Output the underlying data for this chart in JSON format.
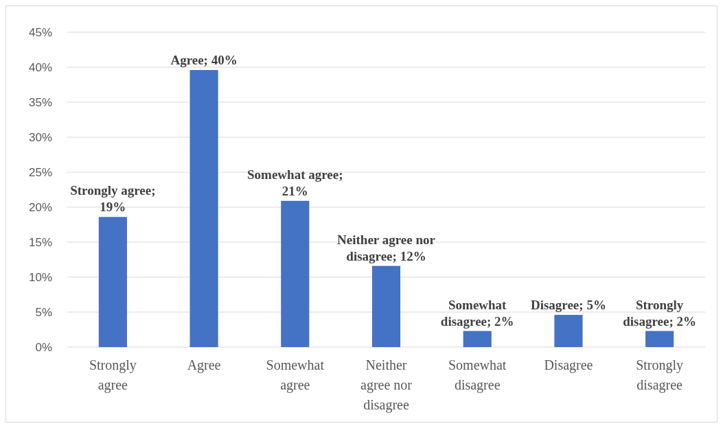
{
  "chart_data": {
    "type": "bar",
    "categories": [
      "Strongly agree",
      "Agree",
      "Somewhat agree",
      "Neither agree nor disagree",
      "Somewhat disagree",
      "Disagree",
      "Strongly disagree"
    ],
    "values": [
      18.6,
      39.6,
      20.9,
      11.6,
      2.3,
      4.6,
      2.3
    ],
    "color": "#4472c4",
    "value_labels": [
      "Strongly agree; 19%",
      "Agree; 40%",
      "Somewhat agree; 21%",
      "Neither agree nor disagree; 12%",
      "Somewhat disagree; 2%",
      "Disagree; 5%",
      "Strongly disagree; 2%"
    ],
    "ylim": [
      0,
      45
    ],
    "yticks": [
      {
        "value": 0,
        "label": "0%"
      },
      {
        "value": 5,
        "label": "5%"
      },
      {
        "value": 10,
        "label": "10%"
      },
      {
        "value": 15,
        "label": "15%"
      },
      {
        "value": 20,
        "label": "20%"
      },
      {
        "value": 25,
        "label": "25%"
      },
      {
        "value": 30,
        "label": "30%"
      },
      {
        "value": 35,
        "label": "35%"
      },
      {
        "value": 40,
        "label": "40%"
      },
      {
        "value": 45,
        "label": "45%"
      }
    ],
    "grid": "y"
  }
}
